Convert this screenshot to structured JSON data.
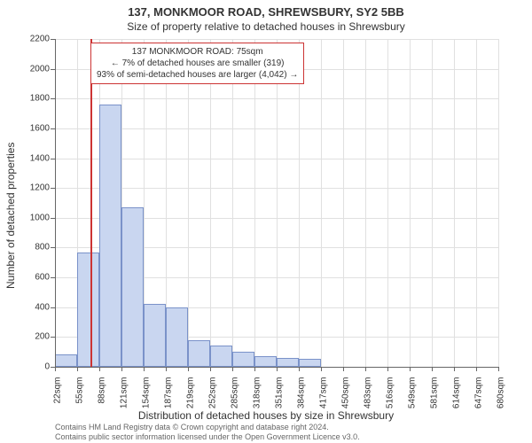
{
  "title_line1": "137, MONKMOOR ROAD, SHREWSBURY, SY2 5BB",
  "title_line2": "Size of property relative to detached houses in Shrewsbury",
  "y_axis_label": "Number of detached properties",
  "x_axis_label": "Distribution of detached houses by size in Shrewsbury",
  "footer_line1": "Contains HM Land Registry data © Crown copyright and database right 2024.",
  "footer_line2": "Contains public sector information licensed under the Open Government Licence v3.0.",
  "annotation": {
    "line1": "137 MONKMOOR ROAD: 75sqm",
    "line2": "← 7% of detached houses are smaller (319)",
    "line3": "93% of semi-detached houses are larger (4,042) →",
    "border_color": "#cc3333",
    "text_color": "#333333"
  },
  "chart": {
    "type": "histogram",
    "background_color": "#ffffff",
    "grid_color": "#e0e0e0",
    "axis_color": "#666666",
    "bar_fill": "#c9d6f0",
    "bar_stroke": "#7a92c9",
    "marker_color": "#cc3333",
    "label_fontsize": 12,
    "tick_fontsize": 10,
    "ylim": [
      0,
      2200
    ],
    "ytick_step": 200,
    "marker_x_value": 75,
    "x_ticks": [
      22,
      55,
      88,
      121,
      154,
      187,
      219,
      252,
      285,
      318,
      351,
      384,
      417,
      450,
      483,
      516,
      549,
      581,
      614,
      647,
      680
    ],
    "x_tick_unit": "sqm",
    "x_range": [
      22,
      680
    ],
    "bars": [
      {
        "x_start": 22,
        "x_end": 55,
        "value": 85
      },
      {
        "x_start": 55,
        "x_end": 88,
        "value": 770
      },
      {
        "x_start": 88,
        "x_end": 121,
        "value": 1760
      },
      {
        "x_start": 121,
        "x_end": 154,
        "value": 1070
      },
      {
        "x_start": 154,
        "x_end": 187,
        "value": 420
      },
      {
        "x_start": 187,
        "x_end": 219,
        "value": 400
      },
      {
        "x_start": 219,
        "x_end": 252,
        "value": 180
      },
      {
        "x_start": 252,
        "x_end": 285,
        "value": 140
      },
      {
        "x_start": 285,
        "x_end": 318,
        "value": 100
      },
      {
        "x_start": 318,
        "x_end": 351,
        "value": 70
      },
      {
        "x_start": 351,
        "x_end": 384,
        "value": 60
      },
      {
        "x_start": 384,
        "x_end": 417,
        "value": 55
      },
      {
        "x_start": 417,
        "x_end": 450,
        "value": 0
      },
      {
        "x_start": 450,
        "x_end": 483,
        "value": 0
      },
      {
        "x_start": 483,
        "x_end": 516,
        "value": 0
      },
      {
        "x_start": 516,
        "x_end": 549,
        "value": 0
      },
      {
        "x_start": 549,
        "x_end": 581,
        "value": 0
      },
      {
        "x_start": 581,
        "x_end": 614,
        "value": 0
      },
      {
        "x_start": 614,
        "x_end": 647,
        "value": 0
      },
      {
        "x_start": 647,
        "x_end": 680,
        "value": 0
      }
    ]
  }
}
